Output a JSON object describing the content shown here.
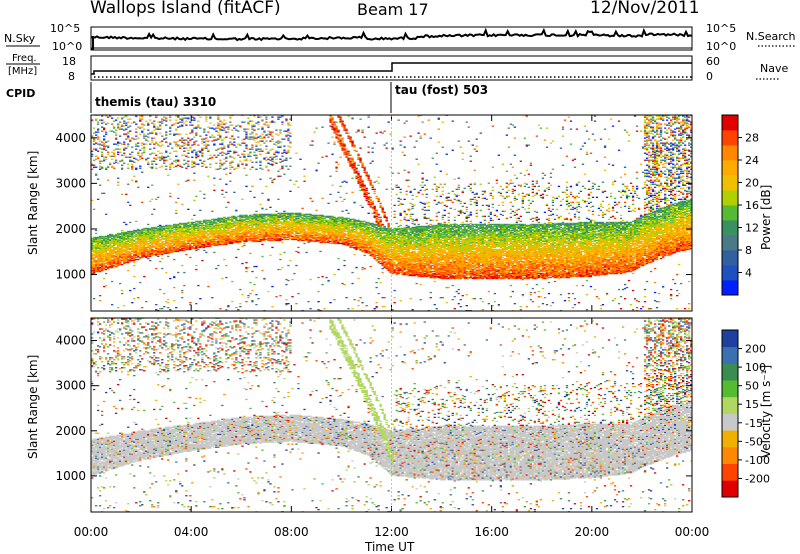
{
  "header": {
    "site": "Wallops Island (fitACF)",
    "beam": "Beam 17",
    "date": "12/Nov/2011"
  },
  "left_labels": {
    "nsky": "N.Sky",
    "freq_line1": "Freq.",
    "freq_line2": "[MHz]",
    "cpid": "CPID"
  },
  "right_labels": {
    "nsearch": "N.Search",
    "nave": "Nave"
  },
  "cpid_labels": {
    "first": "themis (tau) 3310",
    "second": "tau (fost) 503"
  },
  "top_ticks": {
    "nsky_left": [
      "10^5",
      "10^0"
    ],
    "nsearch_right": [
      "10^5",
      "10^0"
    ],
    "freq_left": [
      "18",
      "8"
    ],
    "nave_right": [
      "60",
      "0"
    ]
  },
  "x_axis": {
    "label": "Time UT",
    "ticks": [
      "00:00",
      "04:00",
      "08:00",
      "12:00",
      "16:00",
      "20:00",
      "00:00"
    ]
  },
  "power_panel": {
    "ylabel": "Slant Range [km]",
    "yticks": [
      "1000",
      "2000",
      "3000",
      "4000"
    ],
    "colorbar_label": "Power [dB]",
    "colorbar_ticks": [
      "28",
      "24",
      "20",
      "16",
      "12",
      "8",
      "4"
    ],
    "colors": [
      "#e00000",
      "#ff4400",
      "#ff8800",
      "#ffaa00",
      "#f0c000",
      "#b0d000",
      "#55bb33",
      "#3a9060",
      "#4a7a88",
      "#3060a0",
      "#2050c0",
      "#0020ff"
    ]
  },
  "velocity_panel": {
    "ylabel": "Slant Range [km]",
    "yticks": [
      "1000",
      "2000",
      "3000",
      "4000"
    ],
    "colorbar_label": "Velocity [m s⁻¹]",
    "colorbar_ticks": [
      "200",
      "100",
      "50",
      "15",
      "-15",
      "-50",
      "-100",
      "-200"
    ],
    "colors": [
      "#2040a0",
      "#3a70b0",
      "#3a8c50",
      "#55bb33",
      "#b0d860",
      "#c8c8c8",
      "#f0b000",
      "#ff8800",
      "#ff4400",
      "#e00000"
    ]
  },
  "chart_data": {
    "type": "heatmap",
    "x_range_hours": [
      0,
      24
    ],
    "y_range_km": [
      200,
      4500
    ],
    "cpid_switch_hour": 12.0,
    "series": [
      {
        "name": "ground/ionospheric scatter band (lower edge)",
        "x": [
          0,
          2,
          4,
          6,
          8,
          10,
          11,
          12,
          14,
          16,
          18,
          20,
          21.5,
          22.5,
          23.5,
          24
        ],
        "values": [
          1000,
          1350,
          1550,
          1700,
          1750,
          1650,
          1450,
          1000,
          900,
          900,
          900,
          950,
          1050,
          1300,
          1500,
          1550
        ]
      },
      {
        "name": "ground/ionospheric scatter band (upper edge)",
        "x": [
          0,
          2,
          4,
          6,
          8,
          10,
          11,
          12,
          14,
          16,
          18,
          20,
          21.5,
          22.5,
          23.5,
          24
        ],
        "values": [
          1800,
          2000,
          2150,
          2300,
          2350,
          2250,
          2150,
          2000,
          2100,
          2100,
          2100,
          2150,
          2150,
          2400,
          2600,
          2650
        ]
      },
      {
        "name": "descending streak",
        "x": [
          9.5,
          10.5,
          11.5,
          12.0
        ],
        "values": [
          4400,
          3300,
          2100,
          1400
        ]
      }
    ]
  }
}
